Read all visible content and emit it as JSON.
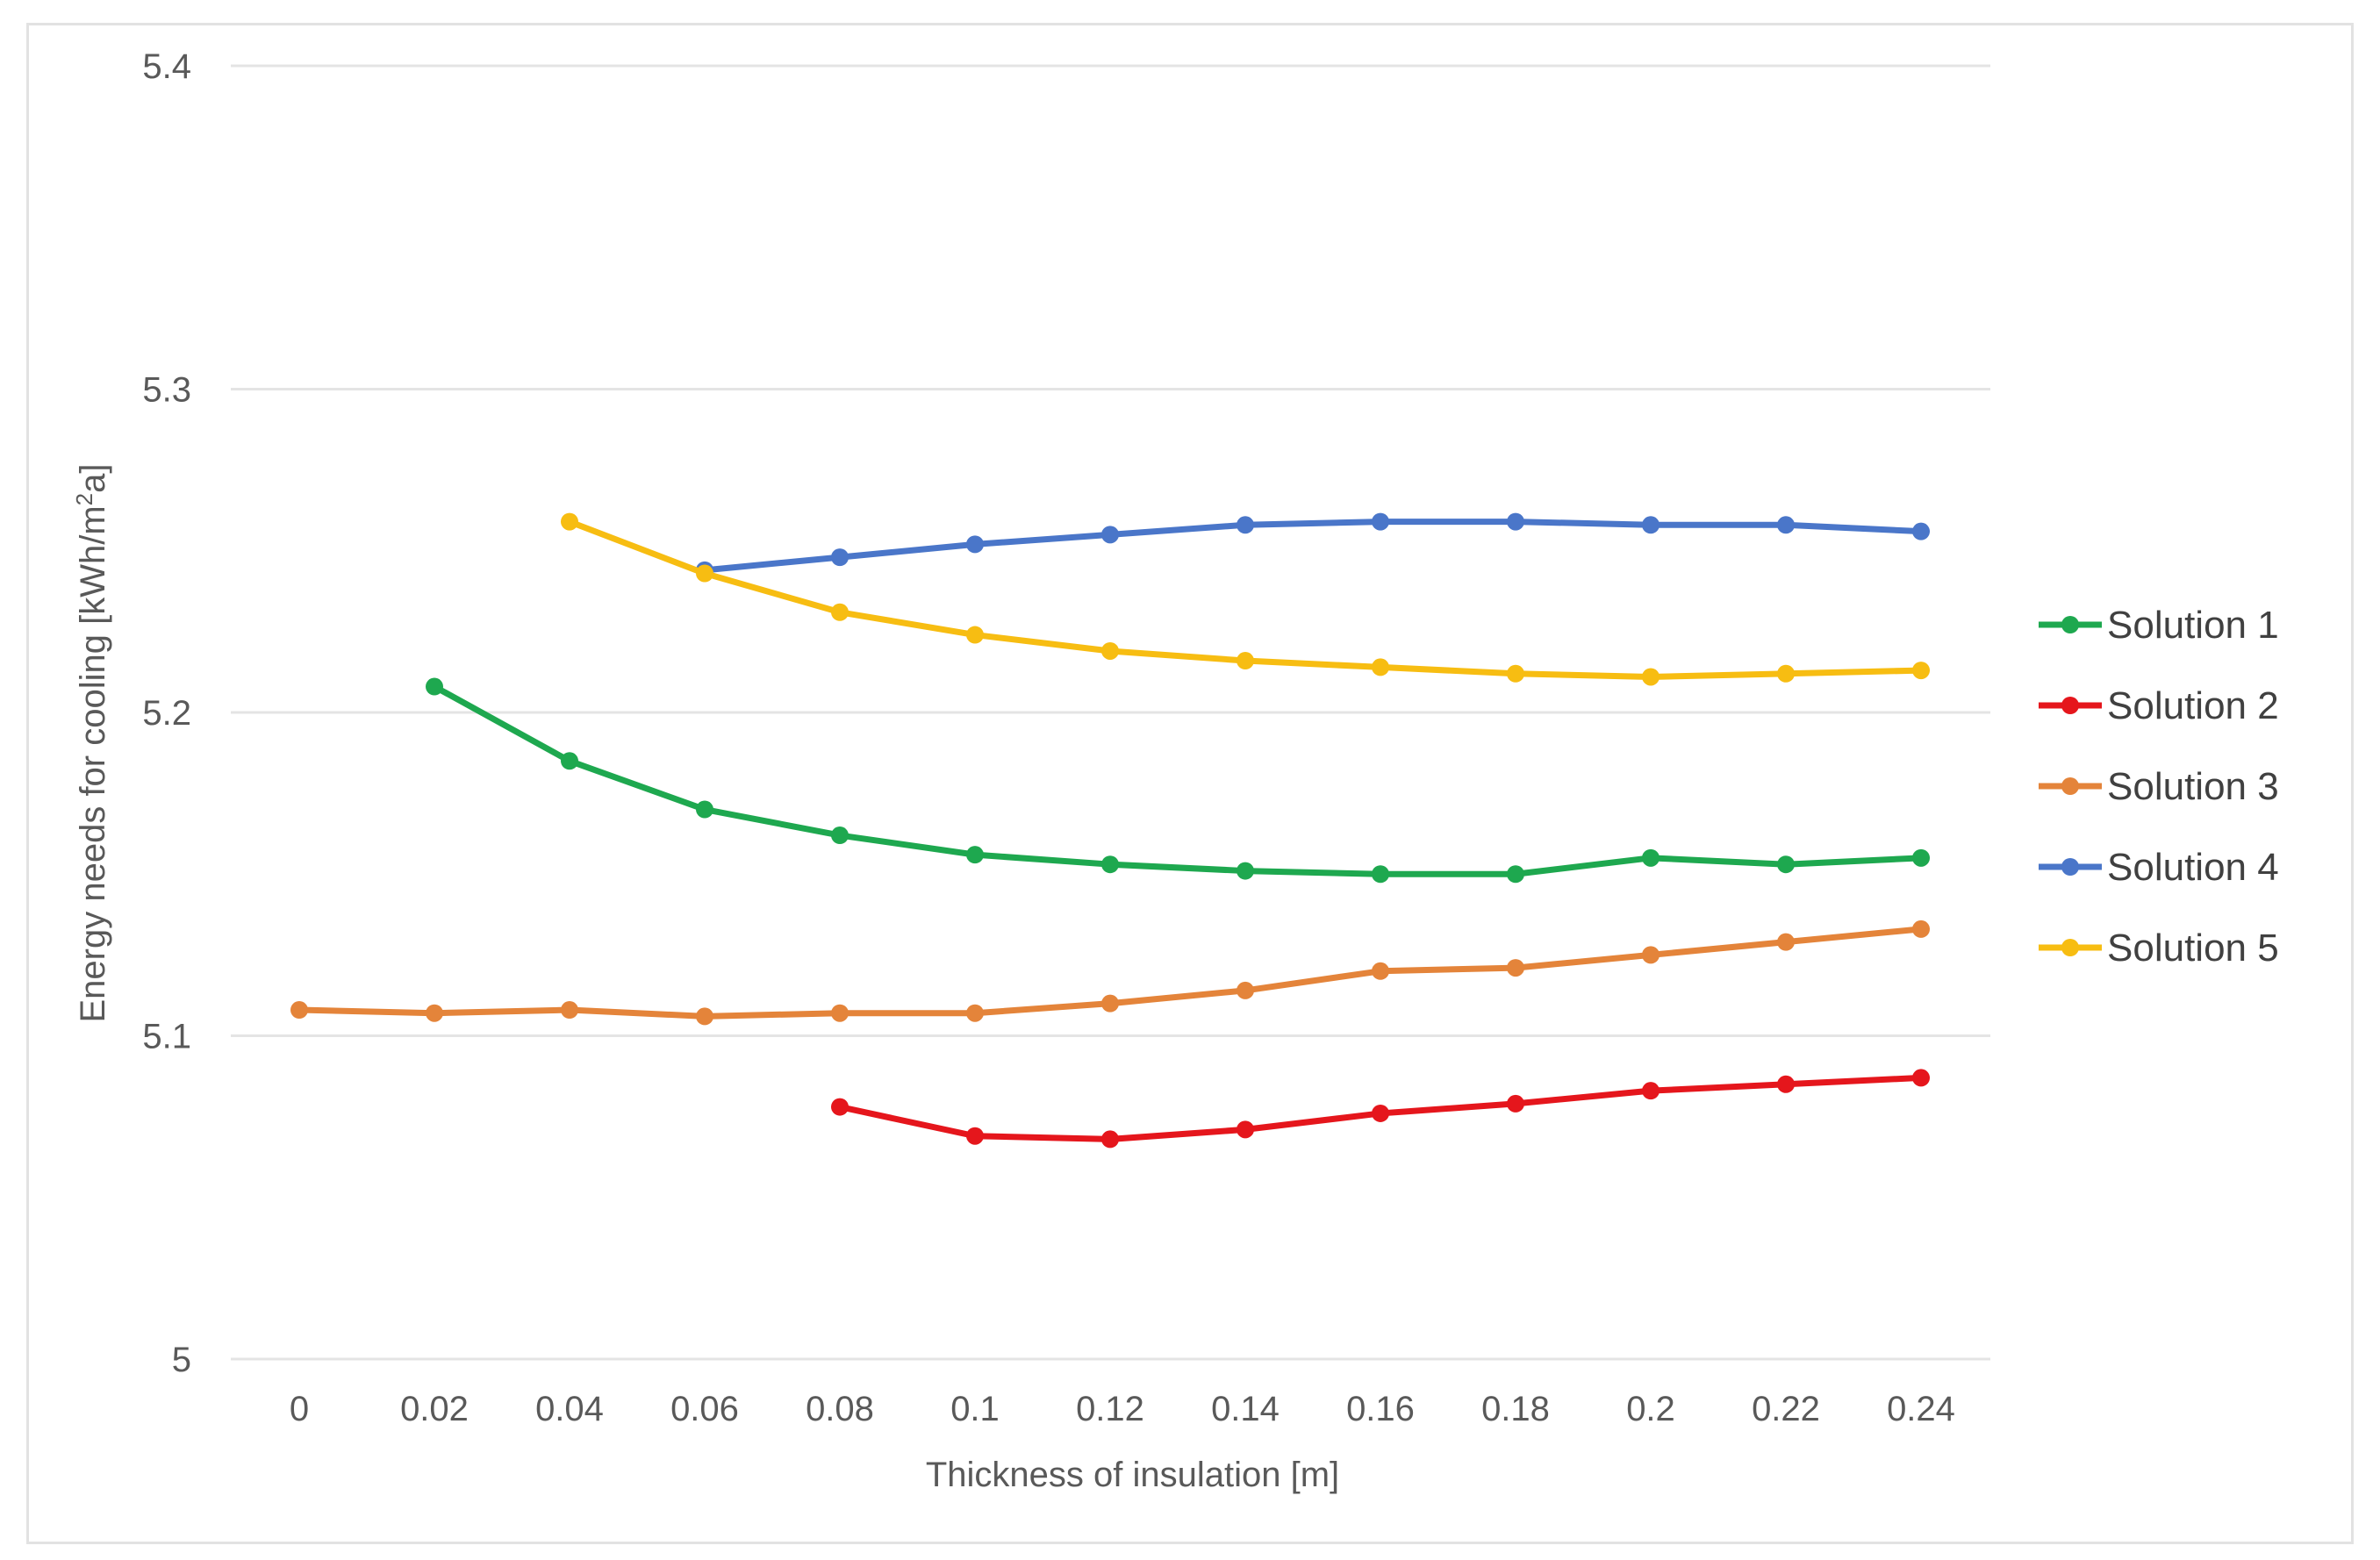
{
  "chart_data": {
    "type": "line",
    "title": "",
    "xlabel": "Thickness of insulation [m]",
    "ylabel_main": "Energy needs for cooling [kWh/m",
    "ylabel_sup": "2",
    "ylabel_tail": "a]",
    "ylim": [
      5,
      5.4
    ],
    "y_ticks": [
      "5",
      "5.1",
      "5.2",
      "5.3",
      "5.4"
    ],
    "y_tick_values": [
      5,
      5.1,
      5.2,
      5.3,
      5.4
    ],
    "categories": [
      "0",
      "0.02",
      "0.04",
      "0.06",
      "0.08",
      "0.1",
      "0.12",
      "0.14",
      "0.16",
      "0.18",
      "0.2",
      "0.22",
      "0.24"
    ],
    "grid": true,
    "legend_position": "right",
    "series": [
      {
        "name": "Solution 1",
        "color": "#1ea84f",
        "values": [
          null,
          5.208,
          5.185,
          5.17,
          5.162,
          5.156,
          5.153,
          5.151,
          5.15,
          5.15,
          5.155,
          5.153,
          5.155
        ]
      },
      {
        "name": "Solution 2",
        "color": "#e5161c",
        "values": [
          null,
          null,
          null,
          null,
          5.078,
          5.069,
          5.068,
          5.071,
          5.076,
          5.079,
          5.083,
          5.085,
          5.087
        ]
      },
      {
        "name": "Solution 3",
        "color": "#e4843a",
        "values": [
          5.108,
          5.107,
          5.108,
          5.106,
          5.107,
          5.107,
          5.11,
          5.114,
          5.12,
          5.121,
          5.125,
          5.129,
          5.133
        ]
      },
      {
        "name": "Solution 4",
        "color": "#4a76c9",
        "values": [
          null,
          null,
          null,
          5.244,
          5.248,
          5.252,
          5.255,
          5.258,
          5.259,
          5.259,
          5.258,
          5.258,
          5.256
        ]
      },
      {
        "name": "Solution 5",
        "color": "#f7bd12",
        "values": [
          null,
          null,
          5.259,
          5.243,
          5.231,
          5.224,
          5.219,
          5.216,
          5.214,
          5.212,
          5.211,
          5.212,
          5.213
        ]
      }
    ]
  }
}
